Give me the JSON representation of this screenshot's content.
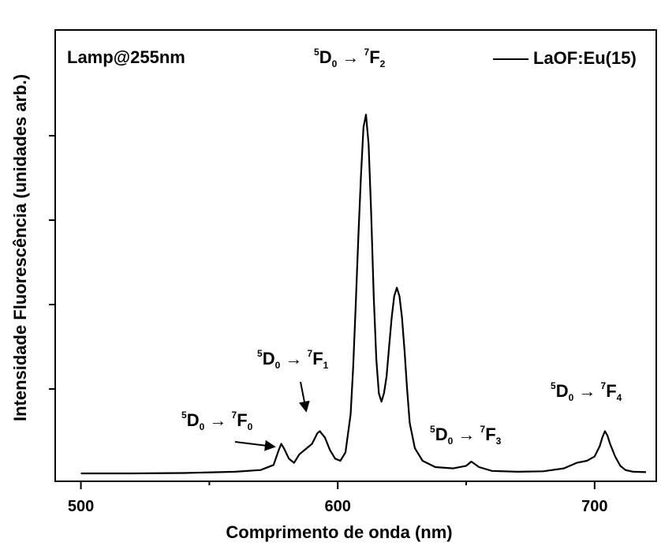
{
  "chart_data": {
    "type": "line",
    "xlabel": "Comprimento de onda (nm)",
    "ylabel": "Intensidade Fluorescência (unidades arb.)",
    "xlim": [
      490,
      724
    ],
    "ylim": [
      0,
      1.0
    ],
    "x_ticks": [
      {
        "value": 500,
        "label": "500"
      },
      {
        "value": 600,
        "label": "600"
      },
      {
        "value": 700,
        "label": "700"
      }
    ],
    "y_ticks": [
      0.2,
      0.4,
      0.6,
      0.8
    ],
    "y_tick_labels_shown": false,
    "legend": {
      "placement": "top-right",
      "entries": [
        "LaOF:Eu(15)"
      ]
    },
    "annotation_text": "Lamp@255nm",
    "series": [
      {
        "name": "LaOF:Eu(15)",
        "color": "#000000",
        "x": [
          500,
          520,
          540,
          560,
          570,
          575,
          577,
          578,
          579,
          581,
          583,
          585,
          588,
          590,
          592,
          593,
          595,
          597,
          599,
          601,
          603,
          605,
          606,
          607,
          608,
          609,
          610,
          611,
          612,
          613,
          614,
          615,
          616,
          617,
          618,
          619,
          620,
          621,
          622,
          623,
          624,
          625,
          626,
          627,
          628,
          630,
          633,
          638,
          645,
          650,
          652,
          655,
          660,
          670,
          680,
          688,
          693,
          697,
          700,
          702,
          703,
          704,
          705,
          706,
          708,
          710,
          712,
          715,
          720
        ],
        "y": [
          0.0,
          0.0,
          0.001,
          0.004,
          0.008,
          0.02,
          0.055,
          0.07,
          0.06,
          0.035,
          0.025,
          0.045,
          0.06,
          0.07,
          0.095,
          0.1,
          0.085,
          0.055,
          0.035,
          0.03,
          0.05,
          0.14,
          0.25,
          0.4,
          0.56,
          0.7,
          0.82,
          0.85,
          0.78,
          0.62,
          0.42,
          0.27,
          0.19,
          0.17,
          0.19,
          0.23,
          0.3,
          0.37,
          0.42,
          0.44,
          0.42,
          0.37,
          0.29,
          0.2,
          0.12,
          0.06,
          0.03,
          0.015,
          0.012,
          0.018,
          0.028,
          0.015,
          0.006,
          0.004,
          0.005,
          0.012,
          0.025,
          0.03,
          0.04,
          0.065,
          0.085,
          0.1,
          0.09,
          0.07,
          0.04,
          0.018,
          0.008,
          0.004,
          0.003
        ]
      }
    ],
    "annotations": [
      {
        "id": "f2",
        "pre": "5",
        "D": "D",
        "d_sub": "0",
        "arrow": "→",
        "post_sup": "7",
        "F": "F",
        "f_sub": "2"
      },
      {
        "id": "f1",
        "pre": "5",
        "D": "D",
        "d_sub": "0",
        "arrow": "→",
        "post_sup": "7",
        "F": "F",
        "f_sub": "1"
      },
      {
        "id": "f0",
        "pre": "5",
        "D": "D",
        "d_sub": "0",
        "arrow": "→",
        "post_sup": "7",
        "F": "F",
        "f_sub": "0"
      },
      {
        "id": "f3",
        "pre": "5",
        "D": "D",
        "d_sub": "0",
        "arrow": "→",
        "post_sup": "7",
        "F": "F",
        "f_sub": "3"
      },
      {
        "id": "f4",
        "pre": "5",
        "D": "D",
        "d_sub": "0",
        "arrow": "→",
        "post_sup": "7",
        "F": "F",
        "f_sub": "4"
      }
    ]
  }
}
